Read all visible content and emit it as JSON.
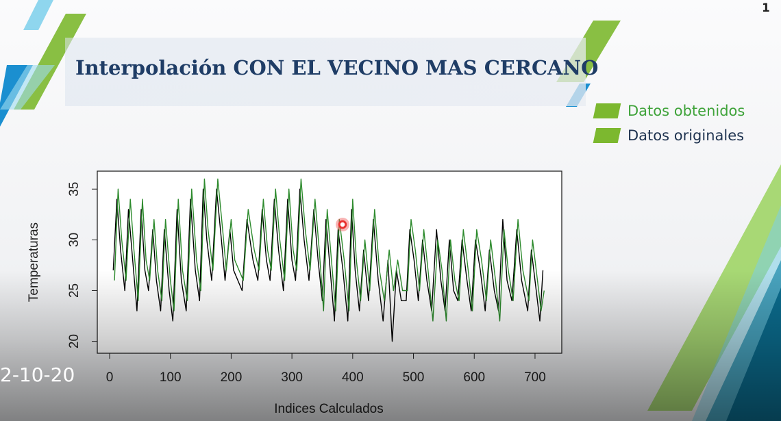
{
  "slide": {
    "title": "Interpolación CON EL VECINO MAS CERCANO",
    "page_number": "1",
    "legend": [
      {
        "label": "Datos obtenidos",
        "swatch": "#7cb82f",
        "text_color": "#3fa33a"
      },
      {
        "label": "Datos originales",
        "swatch": "#7cb82f",
        "text_color": "#1f3350"
      }
    ],
    "date_overlay": "2-10-20"
  },
  "colors": {
    "title": "#1f3d66",
    "deco_green": "#7cb82f",
    "deco_blue": "#1b8fd0",
    "deco_light_blue": "#8fd6ee",
    "deco_teal": "#0a6f8a",
    "series_obtenidos": "#2e8b2e",
    "series_originales": "#000000"
  },
  "chart_data": {
    "type": "line",
    "xlabel": "Indices Calculados",
    "ylabel": "Temperaturas",
    "xlim": [
      0,
      735
    ],
    "ylim": [
      19.5,
      36.5
    ],
    "xticks": [
      0,
      100,
      200,
      300,
      400,
      500,
      600,
      700
    ],
    "yticks": [
      20,
      25,
      30,
      35
    ],
    "grid": false,
    "series": [
      {
        "name": "Datos obtenidos",
        "color": "#2e8b2e",
        "x": [
          8,
          14,
          20,
          27,
          34,
          40,
          47,
          54,
          60,
          66,
          73,
          79,
          86,
          92,
          100,
          106,
          113,
          120,
          128,
          135,
          143,
          150,
          156,
          162,
          170,
          178,
          186,
          192,
          200,
          206,
          213,
          220,
          228,
          238,
          246,
          253,
          260,
          266,
          273,
          280,
          288,
          295,
          302,
          308,
          315,
          322,
          330,
          338,
          345,
          352,
          358,
          365,
          372,
          378,
          386,
          394,
          400,
          406,
          413,
          420,
          428,
          436,
          444,
          452,
          460,
          467,
          474,
          482,
          490,
          496,
          503,
          510,
          517,
          524,
          532,
          540,
          547,
          554,
          561,
          568,
          575,
          582,
          590,
          597,
          604,
          612,
          620,
          627,
          635,
          642,
          649,
          656,
          664,
          672,
          680,
          690,
          696,
          704,
          710,
          715
        ],
        "y": [
          26,
          35,
          30,
          26,
          34,
          29,
          24,
          34,
          28,
          26,
          32,
          27,
          24,
          32,
          26,
          23,
          34,
          27,
          24,
          35,
          28,
          25,
          36,
          31,
          27,
          36,
          31,
          27,
          32,
          28,
          27,
          26,
          33,
          29,
          27,
          34,
          29,
          27,
          35,
          30,
          26,
          35,
          29,
          27,
          36,
          31,
          27,
          34,
          29,
          23,
          33,
          28,
          23,
          32,
          28,
          23,
          34,
          28,
          24,
          30,
          25,
          33,
          27,
          24,
          29,
          25,
          28,
          25,
          25,
          32,
          29,
          25,
          31,
          27,
          22,
          30,
          27,
          22,
          30,
          26,
          24,
          31,
          27,
          23,
          31,
          28,
          24,
          30,
          26,
          22,
          31,
          27,
          24,
          32,
          27,
          24,
          30,
          26,
          23,
          25
        ]
      },
      {
        "name": "Datos originales",
        "color": "#000000",
        "x": [
          6,
          12,
          18,
          25,
          31,
          38,
          45,
          52,
          58,
          64,
          71,
          77,
          84,
          90,
          98,
          104,
          111,
          118,
          126,
          133,
          141,
          148,
          154,
          160,
          168,
          176,
          184,
          190,
          198,
          204,
          211,
          218,
          226,
          236,
          244,
          251,
          258,
          264,
          271,
          278,
          286,
          293,
          300,
          306,
          313,
          320,
          328,
          336,
          343,
          350,
          356,
          363,
          370,
          376,
          384,
          392,
          398,
          404,
          411,
          418,
          426,
          434,
          442,
          450,
          458,
          465,
          472,
          480,
          488,
          494,
          501,
          508,
          515,
          522,
          530,
          538,
          545,
          552,
          559,
          566,
          573,
          580,
          588,
          595,
          602,
          610,
          618,
          625,
          633,
          640,
          647,
          654,
          662,
          670,
          678,
          688,
          694,
          702,
          708,
          713
        ],
        "y": [
          27,
          34,
          29,
          25,
          33,
          28,
          23,
          33,
          27,
          25,
          31,
          26,
          23,
          31,
          25,
          22,
          33,
          26,
          23,
          34,
          27,
          24,
          35,
          30,
          26,
          35,
          30,
          26,
          31,
          27,
          26,
          25,
          32,
          28,
          26,
          33,
          28,
          26,
          34,
          29,
          25,
          34,
          28,
          26,
          35,
          30,
          26,
          33,
          28,
          24,
          32,
          27,
          22,
          31,
          27,
          22,
          33,
          27,
          23,
          29,
          24,
          32,
          26,
          22,
          28,
          20,
          27,
          24,
          24,
          31,
          28,
          24,
          30,
          26,
          23,
          31,
          26,
          23,
          30,
          25,
          24,
          30,
          26,
          23,
          30,
          27,
          23,
          29,
          25,
          23,
          32,
          26,
          24,
          31,
          26,
          23,
          29,
          25,
          22,
          27
        ]
      }
    ]
  }
}
